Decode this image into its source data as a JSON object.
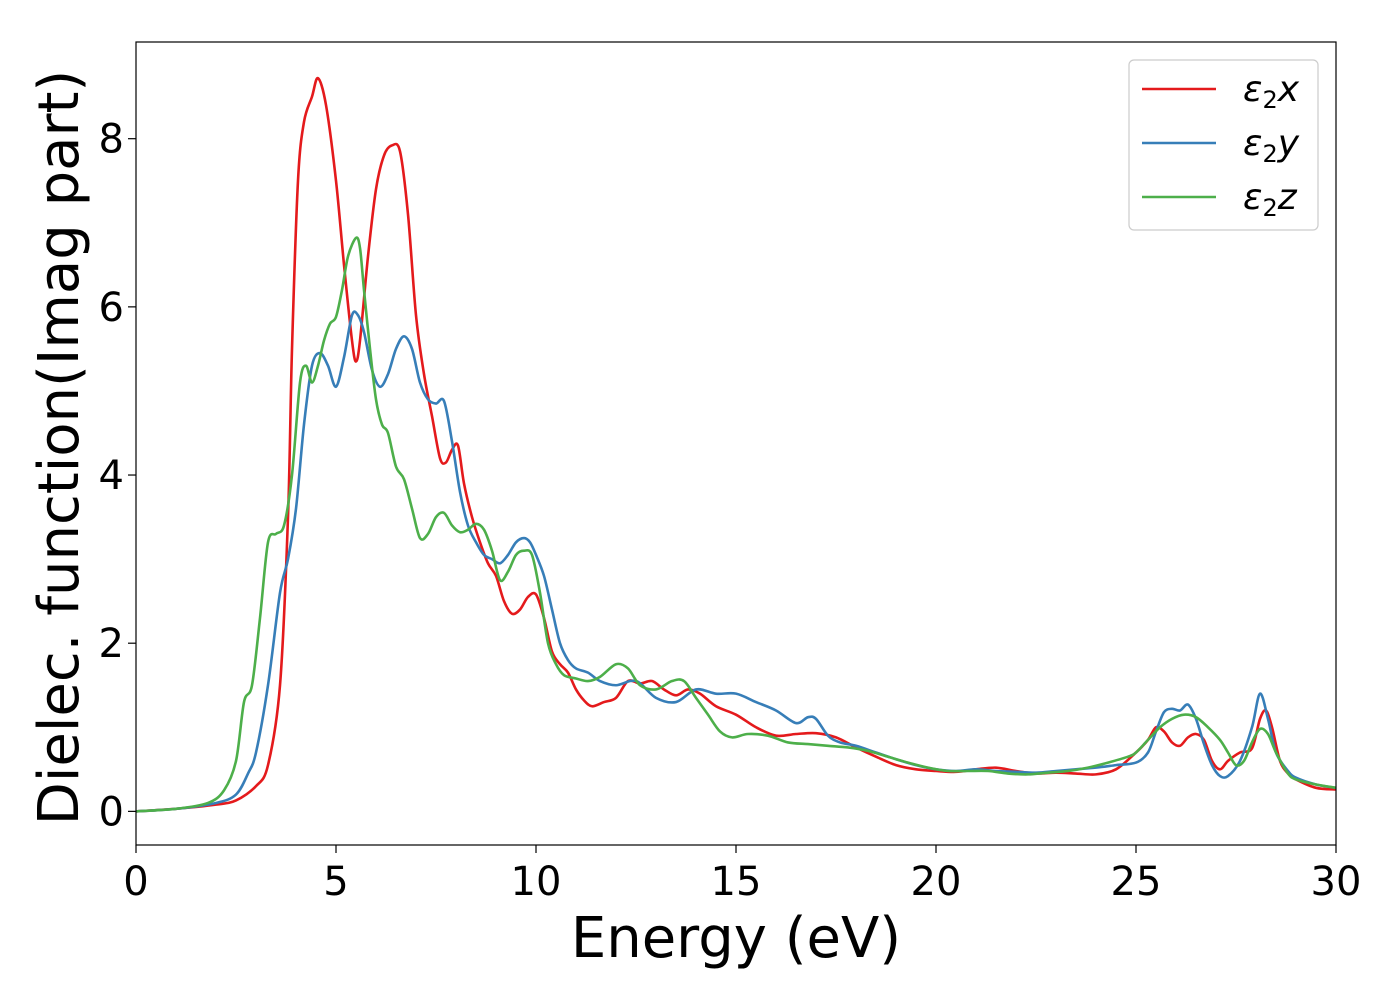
{
  "chart_data": {
    "type": "line",
    "title": "",
    "xlabel": "Energy (eV)",
    "ylabel": "Dielec. function(Imag part)",
    "xlim": [
      0,
      30
    ],
    "ylim": [
      -0.4,
      9.15
    ],
    "xticks": [
      0,
      5,
      10,
      15,
      20,
      25,
      30
    ],
    "yticks": [
      0,
      2,
      4,
      6,
      8
    ],
    "grid": false,
    "legend_position": "top-right",
    "series": [
      {
        "name": "ε₂x",
        "legend_main": "ε",
        "legend_sub": "2",
        "legend_tail": "x",
        "color": "#e41a1c",
        "x": [
          0,
          1,
          2,
          2.5,
          3,
          3.3,
          3.6,
          3.8,
          3.9,
          4.05,
          4.2,
          4.4,
          4.55,
          4.75,
          5.0,
          5.2,
          5.4,
          5.5,
          5.6,
          5.8,
          6.0,
          6.2,
          6.4,
          6.6,
          6.8,
          7.0,
          7.2,
          7.4,
          7.6,
          7.75,
          7.9,
          8.05,
          8.2,
          8.4,
          8.6,
          8.8,
          9.0,
          9.2,
          9.4,
          9.6,
          9.8,
          10.0,
          10.2,
          10.4,
          10.6,
          10.8,
          11.0,
          11.2,
          11.4,
          11.7,
          12.0,
          12.3,
          12.6,
          12.9,
          13.2,
          13.5,
          13.8,
          14.1,
          14.5,
          15.0,
          15.5,
          16.0,
          16.5,
          17.0,
          17.5,
          18.0,
          18.5,
          19.0,
          19.5,
          20.0,
          20.5,
          21.0,
          21.5,
          22.0,
          22.5,
          23.0,
          23.5,
          24.0,
          24.5,
          25.0,
          25.3,
          25.5,
          25.7,
          25.9,
          26.1,
          26.3,
          26.5,
          26.7,
          26.9,
          27.1,
          27.3,
          27.6,
          27.9,
          28.1,
          28.25,
          28.4,
          28.6,
          28.8,
          29.0,
          29.5,
          30.0
        ],
        "y": [
          0.0,
          0.03,
          0.08,
          0.13,
          0.3,
          0.55,
          1.5,
          3.5,
          5.5,
          7.5,
          8.2,
          8.5,
          8.72,
          8.4,
          7.5,
          6.5,
          5.6,
          5.35,
          5.6,
          6.6,
          7.4,
          7.8,
          7.92,
          7.85,
          7.1,
          5.9,
          5.2,
          4.7,
          4.2,
          4.15,
          4.3,
          4.35,
          3.9,
          3.5,
          3.2,
          2.95,
          2.8,
          2.5,
          2.35,
          2.4,
          2.55,
          2.58,
          2.3,
          1.9,
          1.75,
          1.65,
          1.45,
          1.32,
          1.25,
          1.3,
          1.35,
          1.55,
          1.52,
          1.55,
          1.45,
          1.38,
          1.45,
          1.4,
          1.25,
          1.15,
          1.0,
          0.9,
          0.92,
          0.93,
          0.88,
          0.76,
          0.65,
          0.55,
          0.5,
          0.48,
          0.47,
          0.5,
          0.52,
          0.48,
          0.45,
          0.46,
          0.45,
          0.44,
          0.5,
          0.7,
          0.85,
          1.0,
          0.95,
          0.82,
          0.78,
          0.88,
          0.92,
          0.85,
          0.6,
          0.5,
          0.6,
          0.7,
          0.75,
          1.1,
          1.2,
          1.0,
          0.6,
          0.45,
          0.38,
          0.28,
          0.26
        ]
      },
      {
        "name": "ε₂y",
        "legend_main": "ε",
        "legend_sub": "2",
        "legend_tail": "y",
        "color": "#377eb8",
        "x": [
          0,
          1,
          2,
          2.5,
          2.8,
          3.0,
          3.3,
          3.6,
          3.8,
          4.0,
          4.2,
          4.4,
          4.6,
          4.8,
          5.0,
          5.2,
          5.4,
          5.55,
          5.7,
          5.9,
          6.1,
          6.3,
          6.5,
          6.7,
          6.9,
          7.1,
          7.3,
          7.5,
          7.7,
          7.9,
          8.1,
          8.3,
          8.5,
          8.7,
          8.9,
          9.1,
          9.3,
          9.5,
          9.7,
          9.85,
          10.0,
          10.2,
          10.4,
          10.6,
          10.8,
          11.0,
          11.3,
          11.6,
          12.0,
          12.5,
          13.0,
          13.5,
          14.0,
          14.5,
          15.0,
          15.5,
          16.0,
          16.5,
          16.8,
          17.0,
          17.3,
          17.6,
          18.0,
          18.5,
          19.0,
          19.5,
          20.0,
          20.5,
          21.0,
          21.5,
          22.0,
          22.5,
          23.0,
          23.5,
          24.0,
          24.5,
          25.0,
          25.3,
          25.5,
          25.7,
          25.9,
          26.1,
          26.3,
          26.5,
          26.7,
          26.9,
          27.1,
          27.3,
          27.6,
          27.9,
          28.1,
          28.3,
          28.5,
          28.8,
          29.0,
          29.5,
          30.0
        ],
        "y": [
          0.0,
          0.03,
          0.1,
          0.2,
          0.45,
          0.7,
          1.5,
          2.6,
          3.0,
          3.6,
          4.6,
          5.3,
          5.45,
          5.3,
          5.05,
          5.4,
          5.9,
          5.9,
          5.7,
          5.25,
          5.05,
          5.2,
          5.5,
          5.65,
          5.5,
          5.1,
          4.9,
          4.85,
          4.88,
          4.4,
          3.8,
          3.4,
          3.2,
          3.05,
          3.0,
          2.95,
          3.05,
          3.2,
          3.25,
          3.2,
          3.05,
          2.8,
          2.4,
          2.0,
          1.8,
          1.7,
          1.65,
          1.55,
          1.5,
          1.55,
          1.35,
          1.3,
          1.45,
          1.4,
          1.4,
          1.3,
          1.2,
          1.05,
          1.12,
          1.1,
          0.9,
          0.82,
          0.78,
          0.7,
          0.62,
          0.55,
          0.5,
          0.48,
          0.5,
          0.48,
          0.47,
          0.46,
          0.48,
          0.5,
          0.52,
          0.55,
          0.58,
          0.7,
          0.95,
          1.18,
          1.22,
          1.2,
          1.27,
          1.1,
          0.8,
          0.55,
          0.42,
          0.42,
          0.6,
          1.0,
          1.4,
          1.1,
          0.7,
          0.48,
          0.4,
          0.32,
          0.28
        ]
      },
      {
        "name": "ε₂z",
        "legend_main": "ε",
        "legend_sub": "2",
        "legend_tail": "z",
        "color": "#4daf4a",
        "x": [
          0,
          1,
          1.8,
          2.2,
          2.5,
          2.7,
          2.9,
          3.1,
          3.3,
          3.5,
          3.7,
          3.9,
          4.1,
          4.25,
          4.4,
          4.55,
          4.7,
          4.85,
          5.0,
          5.15,
          5.3,
          5.5,
          5.6,
          5.7,
          5.85,
          6.0,
          6.15,
          6.3,
          6.5,
          6.7,
          6.9,
          7.1,
          7.3,
          7.5,
          7.7,
          7.9,
          8.1,
          8.3,
          8.5,
          8.7,
          8.9,
          9.1,
          9.3,
          9.5,
          9.7,
          9.9,
          10.1,
          10.3,
          10.5,
          10.7,
          11.0,
          11.3,
          11.6,
          12.0,
          12.3,
          12.6,
          13.0,
          13.4,
          13.7,
          14.0,
          14.3,
          14.6,
          14.9,
          15.3,
          15.8,
          16.3,
          16.8,
          17.3,
          17.8,
          18.3,
          18.8,
          19.3,
          19.8,
          20.3,
          20.8,
          21.3,
          21.8,
          22.3,
          22.8,
          23.3,
          23.8,
          24.3,
          24.8,
          25.0,
          25.3,
          25.6,
          25.9,
          26.2,
          26.5,
          26.8,
          27.1,
          27.3,
          27.5,
          27.7,
          27.9,
          28.1,
          28.3,
          28.5,
          28.8,
          29.0,
          29.5,
          30.0
        ],
        "y": [
          0.0,
          0.03,
          0.1,
          0.25,
          0.6,
          1.3,
          1.5,
          2.3,
          3.2,
          3.3,
          3.4,
          4.0,
          5.1,
          5.3,
          5.1,
          5.3,
          5.6,
          5.8,
          5.88,
          6.2,
          6.6,
          6.82,
          6.7,
          6.2,
          5.5,
          4.9,
          4.6,
          4.5,
          4.1,
          3.95,
          3.6,
          3.25,
          3.3,
          3.5,
          3.55,
          3.4,
          3.32,
          3.35,
          3.42,
          3.35,
          3.1,
          2.75,
          2.85,
          3.05,
          3.1,
          3.05,
          2.6,
          2.0,
          1.75,
          1.62,
          1.58,
          1.55,
          1.6,
          1.75,
          1.7,
          1.5,
          1.45,
          1.55,
          1.55,
          1.35,
          1.15,
          0.95,
          0.88,
          0.92,
          0.9,
          0.82,
          0.8,
          0.78,
          0.76,
          0.72,
          0.65,
          0.58,
          0.52,
          0.48,
          0.48,
          0.48,
          0.45,
          0.44,
          0.46,
          0.48,
          0.52,
          0.58,
          0.65,
          0.7,
          0.85,
          1.0,
          1.1,
          1.15,
          1.12,
          1.0,
          0.85,
          0.7,
          0.55,
          0.6,
          0.82,
          0.98,
          0.92,
          0.7,
          0.45,
          0.38,
          0.32,
          0.28
        ]
      }
    ]
  }
}
